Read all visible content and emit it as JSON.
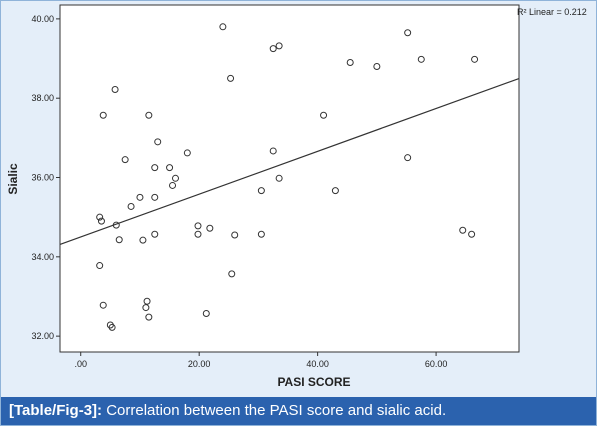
{
  "caption": {
    "label": "[Table/Fig-3]:",
    "text": " Correlation between the PASI score and sialic acid."
  },
  "colors": {
    "frame_background": "#e4eef9",
    "plot_background": "#ffffff",
    "caption_background": "#2b62ae",
    "caption_text": "#ffffff",
    "marker": "#333333",
    "fit_line": "#333333"
  },
  "chart_data": {
    "type": "scatter",
    "title": "",
    "xlabel": "PASI SCORE",
    "ylabel": "Sialic",
    "xlim": [
      -3.5,
      74
    ],
    "ylim": [
      31.6,
      40.35
    ],
    "x_ticks": [
      0,
      20,
      40,
      60
    ],
    "x_tick_labels": [
      ".00",
      "20.00",
      "40.00",
      "60.00"
    ],
    "y_ticks": [
      32,
      34,
      36,
      38,
      40
    ],
    "y_tick_labels": [
      "32.00",
      "34.00",
      "36.00",
      "38.00",
      "40.00"
    ],
    "grid": false,
    "fit_line": {
      "intercept": 34.5,
      "slope": 0.054,
      "legend": "R² Linear = 0.212"
    },
    "points": [
      {
        "x": 24,
        "y": 39.8
      },
      {
        "x": 32.5,
        "y": 39.25
      },
      {
        "x": 33.5,
        "y": 39.32
      },
      {
        "x": 55.2,
        "y": 39.65
      },
      {
        "x": 57.5,
        "y": 38.98
      },
      {
        "x": 66.5,
        "y": 38.98
      },
      {
        "x": 45.5,
        "y": 38.9
      },
      {
        "x": 50,
        "y": 38.8
      },
      {
        "x": 25.3,
        "y": 38.5
      },
      {
        "x": 5.8,
        "y": 38.22
      },
      {
        "x": 3.8,
        "y": 37.57
      },
      {
        "x": 11.5,
        "y": 37.57
      },
      {
        "x": 41,
        "y": 37.57
      },
      {
        "x": 13,
        "y": 36.9
      },
      {
        "x": 18,
        "y": 36.62
      },
      {
        "x": 32.5,
        "y": 36.67
      },
      {
        "x": 7.5,
        "y": 36.45
      },
      {
        "x": 55.2,
        "y": 36.5
      },
      {
        "x": 12.5,
        "y": 36.25
      },
      {
        "x": 15,
        "y": 36.25
      },
      {
        "x": 16,
        "y": 35.98
      },
      {
        "x": 33.5,
        "y": 35.98
      },
      {
        "x": 15.5,
        "y": 35.8
      },
      {
        "x": 30.5,
        "y": 35.67
      },
      {
        "x": 43,
        "y": 35.67
      },
      {
        "x": 10,
        "y": 35.5
      },
      {
        "x": 12.5,
        "y": 35.5
      },
      {
        "x": 8.5,
        "y": 35.27
      },
      {
        "x": 3.2,
        "y": 35.0
      },
      {
        "x": 3.5,
        "y": 34.9
      },
      {
        "x": 6,
        "y": 34.8
      },
      {
        "x": 19.8,
        "y": 34.78
      },
      {
        "x": 21.8,
        "y": 34.72
      },
      {
        "x": 6.5,
        "y": 34.43
      },
      {
        "x": 10.5,
        "y": 34.42
      },
      {
        "x": 12.5,
        "y": 34.57
      },
      {
        "x": 19.8,
        "y": 34.57
      },
      {
        "x": 26,
        "y": 34.55
      },
      {
        "x": 30.5,
        "y": 34.57
      },
      {
        "x": 64.5,
        "y": 34.67
      },
      {
        "x": 66,
        "y": 34.57
      },
      {
        "x": 3.2,
        "y": 33.78
      },
      {
        "x": 25.5,
        "y": 33.57
      },
      {
        "x": 3.8,
        "y": 32.78
      },
      {
        "x": 11.2,
        "y": 32.88
      },
      {
        "x": 11,
        "y": 32.72
      },
      {
        "x": 11.5,
        "y": 32.48
      },
      {
        "x": 21.2,
        "y": 32.57
      },
      {
        "x": 5,
        "y": 32.28
      },
      {
        "x": 5.3,
        "y": 32.22
      }
    ]
  }
}
